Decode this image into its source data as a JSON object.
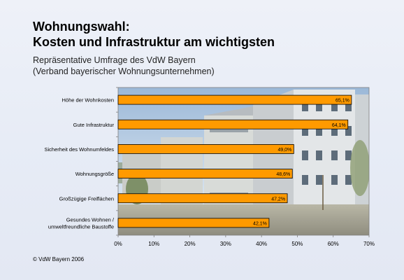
{
  "title_line1": "Wohnungswahl:",
  "title_line2": "Kosten und Infrastruktur am wichtigsten",
  "subtitle_line1": "Repräsentative Umfrage des VdW Bayern",
  "subtitle_line2": "(Verband bayerischer Wohnungsunternehmen)",
  "copyright": "© VdW Bayern 2006",
  "colors": {
    "bar_fill": "#ff9a00",
    "bar_stroke": "#000000",
    "sky_top": "#9bb8d8",
    "facade": "#dfe3e6"
  },
  "chart_data": {
    "type": "bar",
    "orientation": "horizontal",
    "categories": [
      [
        "Höhe der Wohnkosten"
      ],
      [
        "Gute Infrastruktur"
      ],
      [
        "Sicherheit des Wohnumfeldes"
      ],
      [
        "Wohnungsgröße"
      ],
      [
        "Großzügige Freiflächen"
      ],
      [
        "Gesundes Wohnen /",
        "umweltfreundliche Baustoffe"
      ]
    ],
    "values": [
      65.1,
      64.1,
      49.0,
      48.6,
      47.2,
      42.1
    ],
    "value_labels": [
      "65,1%",
      "64,1%",
      "49,0%",
      "48,6%",
      "47,2%",
      "42,1%"
    ],
    "xlim": [
      0,
      70
    ],
    "xticks": [
      0,
      10,
      20,
      30,
      40,
      50,
      60,
      70
    ],
    "xtick_labels": [
      "0%",
      "10%",
      "20%",
      "30%",
      "40%",
      "50%",
      "60%",
      "70%"
    ],
    "grid": false,
    "legend": "none"
  }
}
